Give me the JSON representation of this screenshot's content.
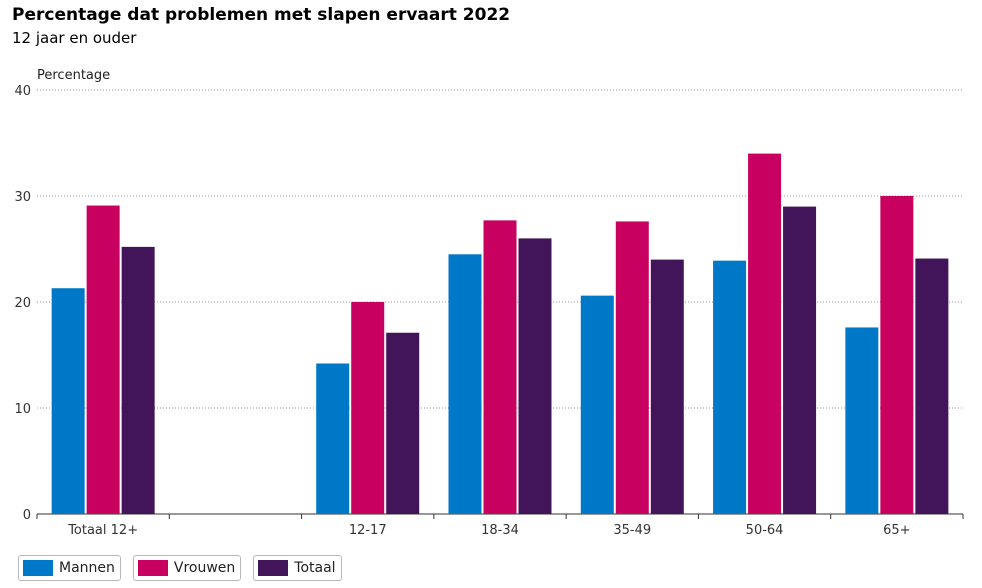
{
  "chart_data": {
    "type": "bar",
    "title": "Percentage dat problemen met slapen ervaart 2022",
    "subtitle": "12 jaar en ouder",
    "ylabel": "Percentage",
    "xlabel": "",
    "ylim": [
      0,
      40
    ],
    "yticks": [
      0,
      10,
      20,
      30,
      40
    ],
    "grid": true,
    "legend_position": "bottom-left",
    "categories": [
      "Totaal 12+",
      "",
      "12-17",
      "18-34",
      "35-49",
      "50-64",
      "65+"
    ],
    "series": [
      {
        "name": "Mannen",
        "color": "#0078c8",
        "values": [
          21.3,
          null,
          14.2,
          24.5,
          20.6,
          23.9,
          17.6
        ]
      },
      {
        "name": "Vrouwen",
        "color": "#c80060",
        "values": [
          29.1,
          null,
          20.0,
          27.7,
          27.6,
          34.0,
          30.0
        ]
      },
      {
        "name": "Totaal",
        "color": "#42145a",
        "values": [
          25.2,
          null,
          17.1,
          26.0,
          24.0,
          29.0,
          24.1
        ]
      }
    ]
  }
}
